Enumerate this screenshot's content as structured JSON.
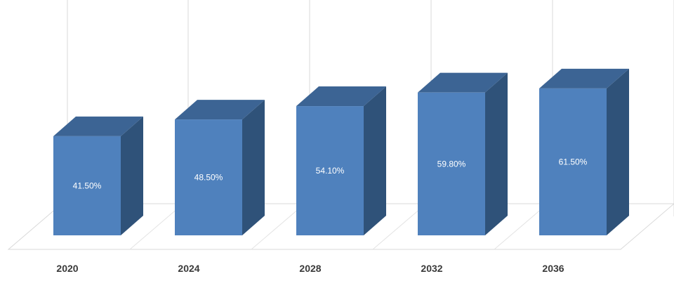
{
  "chart_data": {
    "type": "bar",
    "style": "3d-column",
    "categories": [
      "2020",
      "2024",
      "2028",
      "2032",
      "2036"
    ],
    "values": [
      41.5,
      48.5,
      54.1,
      59.8,
      61.5
    ],
    "data_labels": [
      "41.50%",
      "48.50%",
      "54.10%",
      "59.80%",
      "61.50%"
    ],
    "title": "",
    "xlabel": "",
    "ylabel": "",
    "ylim": [
      0,
      70
    ],
    "grid": true,
    "legend": "none",
    "colors": {
      "front": "#4F81BD",
      "side": "#2F5279",
      "top": "#3C6494",
      "grid": "#D9D9D9",
      "tick_text": "#3A3A3A",
      "label_text": "#FFFFFF"
    }
  }
}
